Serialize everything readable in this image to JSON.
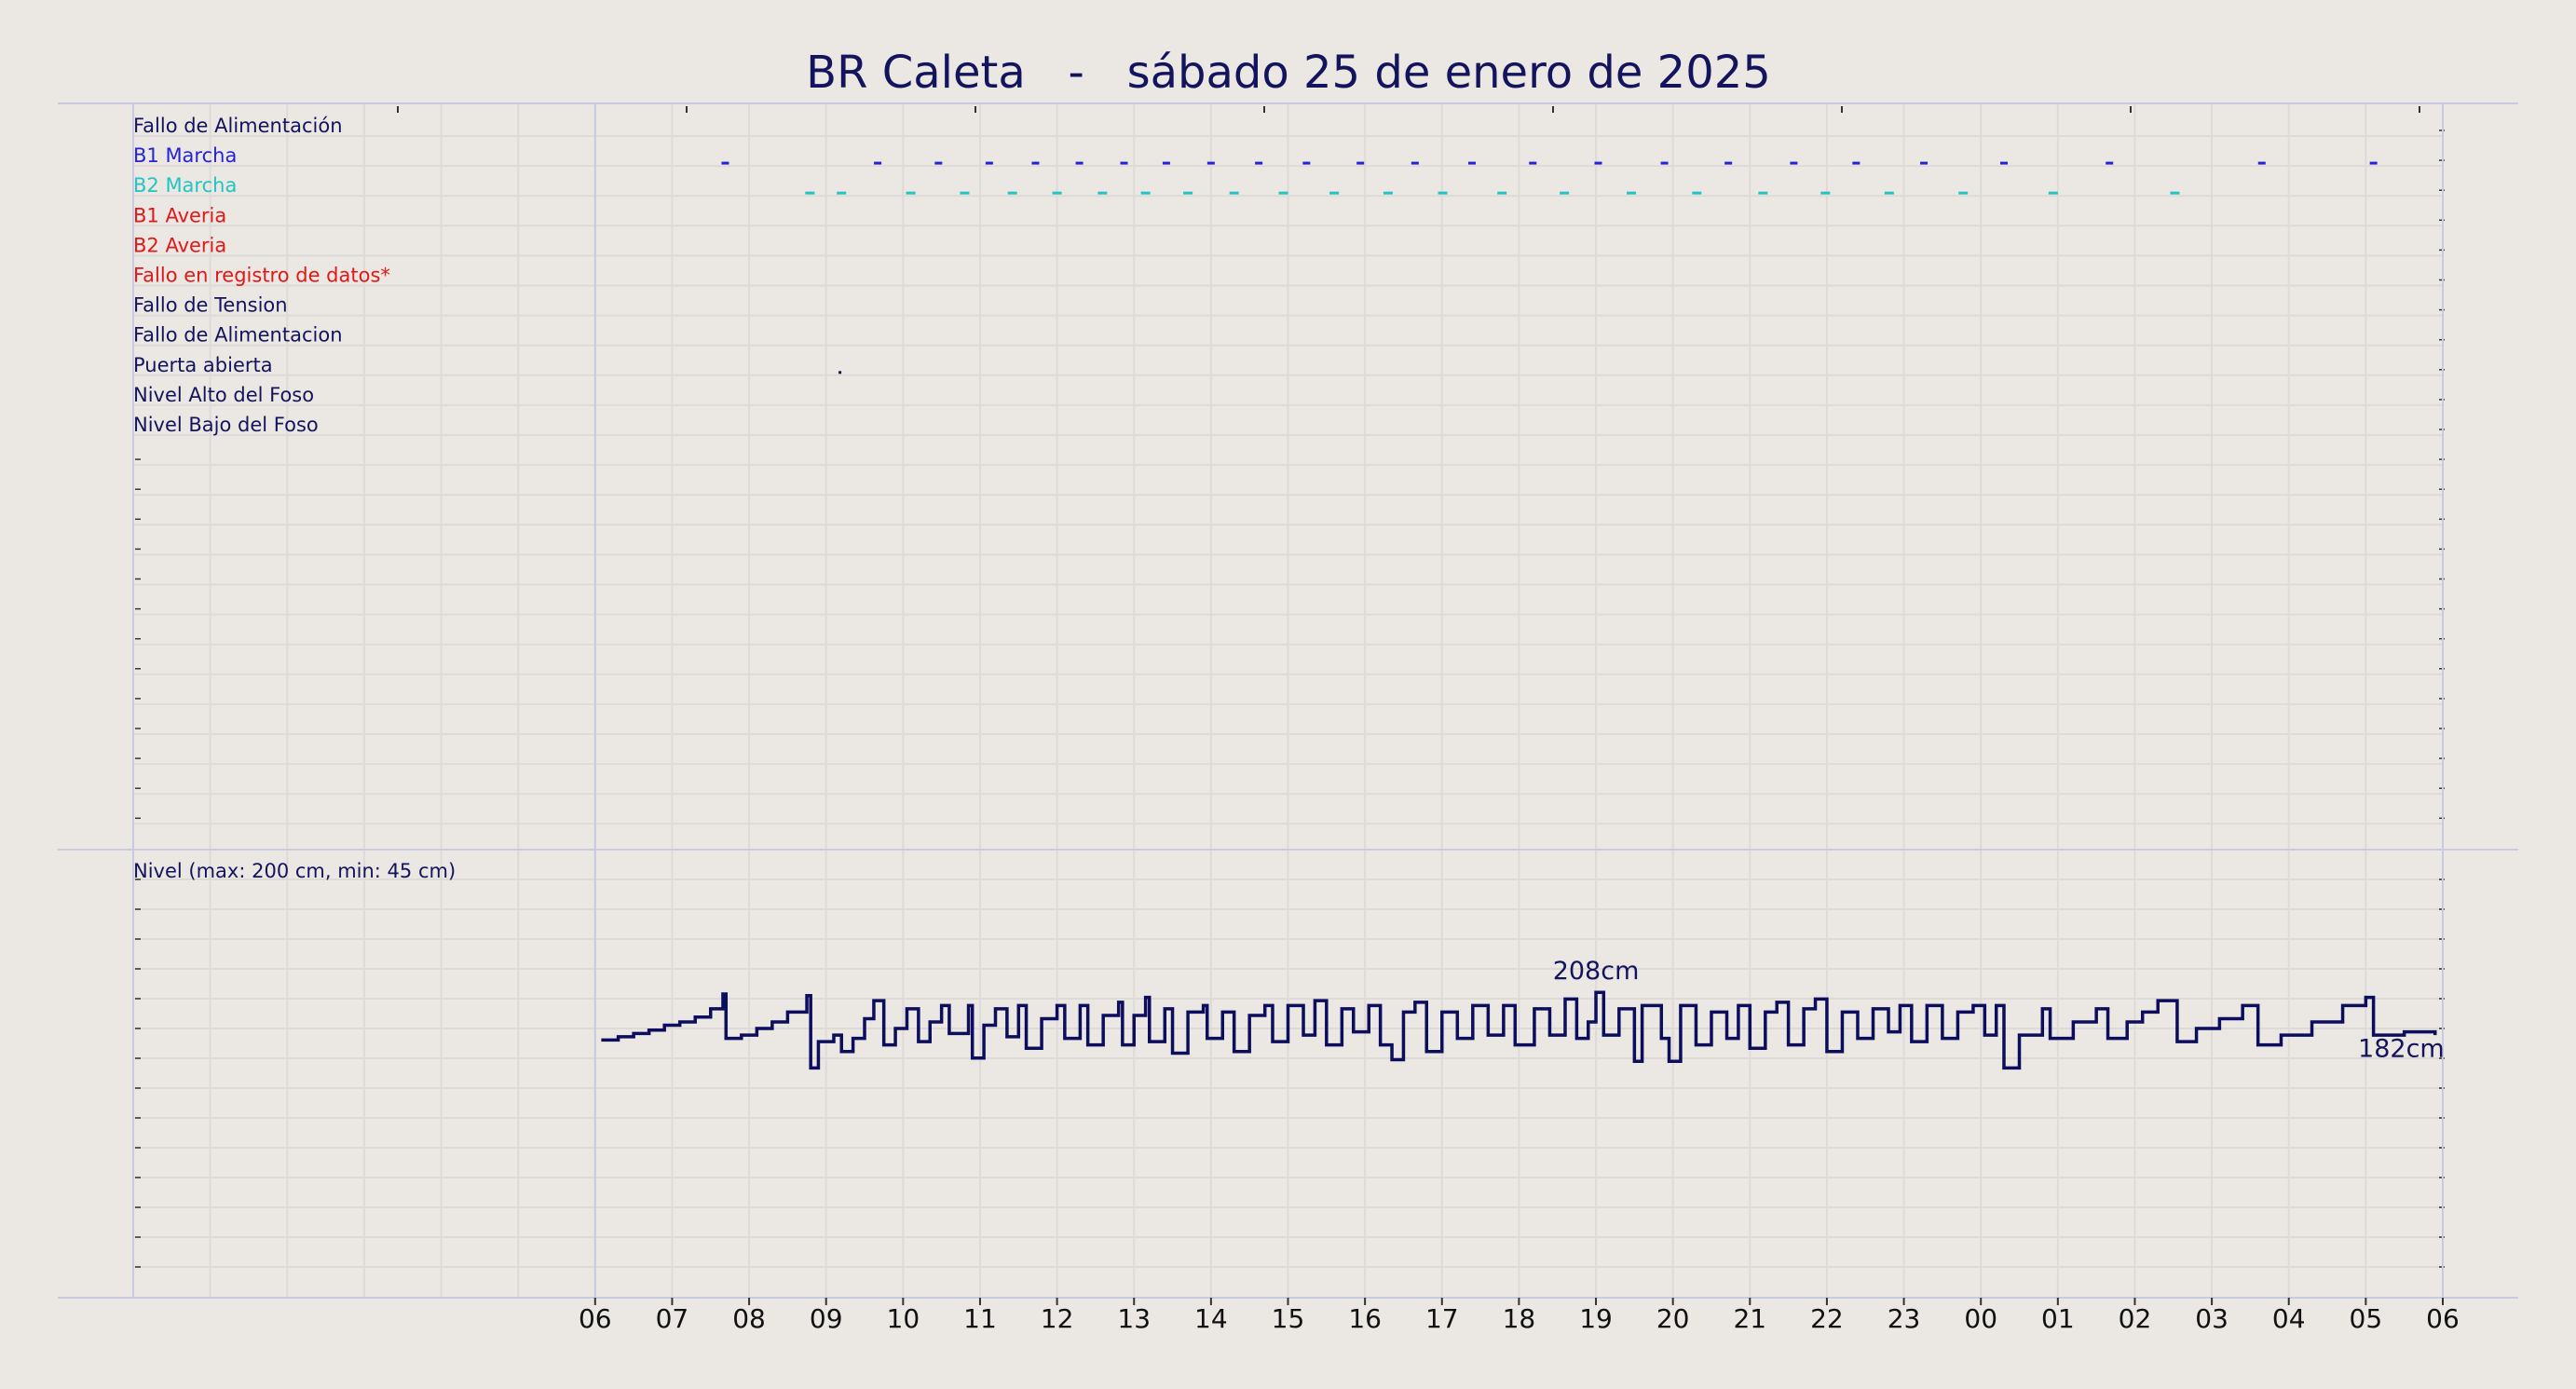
{
  "chart_data": [
    {
      "type": "events",
      "title": "BR Caleta   -   sábado 25 de enero de 2025",
      "xlim": [
        0,
        30
      ],
      "rows": [
        {
          "label": "Fallo de Alimentación",
          "color": "#14145e"
        },
        {
          "label": "B1 Marcha",
          "color": "#2424d4",
          "x": [
            7.69,
            9.67,
            10.46,
            11.12,
            11.72,
            12.29,
            12.87,
            13.42,
            14.0,
            14.62,
            15.24,
            15.94,
            16.65,
            17.39,
            18.18,
            19.03,
            19.89,
            20.72,
            21.57,
            22.38,
            23.26,
            24.3,
            25.67,
            27.65,
            29.1
          ]
        },
        {
          "label": "B2 Marcha",
          "color": "#22c4c4",
          "x": [
            8.79,
            9.2,
            10.1,
            10.8,
            11.42,
            12.0,
            12.59,
            13.15,
            13.7,
            14.3,
            14.94,
            15.6,
            16.3,
            17.01,
            17.78,
            18.59,
            19.46,
            20.31,
            21.17,
            21.98,
            22.81,
            23.77,
            24.94,
            26.52
          ]
        },
        {
          "label": "B1 Averia",
          "color": "#e01818"
        },
        {
          "label": "B2 Averia",
          "color": "#e01818"
        },
        {
          "label": "Fallo en registro de datos*",
          "color": "#e01818"
        },
        {
          "label": "Fallo de Tension",
          "color": "#14145e"
        },
        {
          "label": "Fallo de Alimentacion",
          "color": "#14145e"
        },
        {
          "label": "Puerta abierta",
          "color": "#14145e",
          "x": [
            9.18
          ]
        },
        {
          "label": "Nivel Alto del Foso",
          "color": "#14145e"
        },
        {
          "label": "Nivel Bajo del Foso",
          "color": "#14145e"
        }
      ]
    },
    {
      "type": "line",
      "title": "Nivel (max: 200 cm, min: 45 cm)",
      "color": "#0d0d5e",
      "xlim": [
        0,
        30
      ],
      "ylim": [
        22,
        295
      ],
      "xticks": [
        {
          "value": 6,
          "label": "06"
        },
        {
          "value": 7,
          "label": "07"
        },
        {
          "value": 8,
          "label": "08"
        },
        {
          "value": 9,
          "label": "09"
        },
        10,
        11,
        12,
        13,
        14,
        15,
        16,
        17,
        18,
        19,
        20,
        21,
        22,
        23,
        {
          "value": 24,
          "label": "00"
        },
        {
          "value": 25,
          "label": "01"
        },
        {
          "value": 26,
          "label": "02"
        },
        {
          "value": 27,
          "label": "03"
        },
        {
          "value": 28,
          "label": "04"
        },
        {
          "value": 29,
          "label": "05"
        },
        {
          "value": 30,
          "label": "06"
        }
      ],
      "x": [
        6.08,
        6.3,
        6.5,
        6.7,
        6.9,
        7.1,
        7.3,
        7.5,
        7.66,
        7.7,
        7.9,
        8.1,
        8.3,
        8.5,
        8.75,
        8.8,
        8.9,
        9.1,
        9.2,
        9.35,
        9.5,
        9.62,
        9.75,
        9.9,
        10.05,
        10.2,
        10.35,
        10.5,
        10.6,
        10.85,
        10.9,
        11.05,
        11.2,
        11.35,
        11.5,
        11.6,
        11.8,
        12.0,
        12.1,
        12.3,
        12.4,
        12.6,
        12.8,
        12.85,
        13.0,
        13.15,
        13.2,
        13.4,
        13.5,
        13.7,
        13.9,
        13.95,
        14.15,
        14.3,
        14.5,
        14.7,
        14.8,
        15.0,
        15.2,
        15.35,
        15.5,
        15.7,
        15.85,
        16.05,
        16.2,
        16.35,
        16.5,
        16.65,
        16.8,
        17.0,
        17.2,
        17.4,
        17.6,
        17.8,
        17.95,
        18.2,
        18.4,
        18.6,
        18.75,
        18.9,
        19.0,
        19.1,
        19.3,
        19.5,
        19.6,
        19.85,
        19.95,
        20.1,
        20.3,
        20.5,
        20.7,
        20.85,
        21.0,
        21.2,
        21.35,
        21.5,
        21.7,
        21.85,
        22.0,
        22.2,
        22.4,
        22.6,
        22.8,
        22.95,
        23.1,
        23.3,
        23.5,
        23.7,
        23.9,
        24.05,
        24.2,
        24.3,
        24.5,
        24.8,
        24.9,
        25.2,
        25.5,
        25.65,
        25.9,
        26.1,
        26.3,
        26.55,
        26.8,
        27.1,
        27.4,
        27.6,
        27.9,
        28.3,
        28.7,
        29.0,
        29.1,
        29.5,
        29.9
      ],
      "values": [
        179,
        181,
        183,
        185,
        188,
        190,
        193,
        198,
        207,
        180,
        182,
        186,
        190,
        196,
        206,
        162,
        178,
        182,
        172,
        180,
        192,
        203,
        176,
        186,
        198,
        178,
        190,
        200,
        183,
        200,
        168,
        188,
        198,
        181,
        200,
        174,
        192,
        200,
        180,
        200,
        176,
        194,
        202,
        176,
        194,
        205,
        178,
        198,
        171,
        196,
        200,
        180,
        196,
        172,
        194,
        200,
        178,
        200,
        182,
        203,
        176,
        198,
        184,
        200,
        176,
        167,
        196,
        202,
        172,
        196,
        180,
        200,
        182,
        200,
        176,
        198,
        182,
        204,
        180,
        190,
        208,
        182,
        198,
        166,
        200,
        180,
        166,
        200,
        176,
        196,
        180,
        200,
        174,
        196,
        202,
        176,
        198,
        204,
        172,
        196,
        180,
        198,
        184,
        200,
        178,
        200,
        180,
        196,
        200,
        182,
        200,
        162,
        182,
        198,
        180,
        190,
        198,
        180,
        190,
        196,
        203,
        178,
        186,
        192,
        200,
        176,
        182,
        190,
        200,
        205,
        182,
        184,
        182
      ],
      "annotations": [
        {
          "text": "208cm",
          "x": 19.0,
          "y": 208
        },
        {
          "text": "182cm",
          "x": 29.9,
          "y": 182
        }
      ]
    }
  ]
}
